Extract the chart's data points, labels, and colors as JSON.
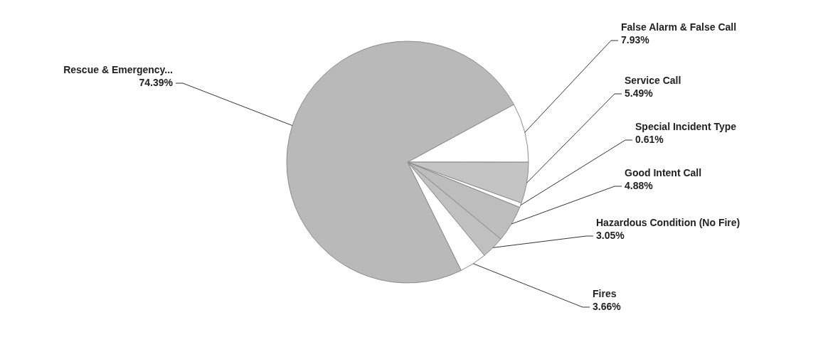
{
  "chart_data": {
    "type": "pie",
    "categories": [
      "False Alarm & False Call",
      "Service Call",
      "Special Incident Type",
      "Good Intent Call",
      "Hazardous Condition (No Fire)",
      "Fires",
      "Rescue & Emergency..."
    ],
    "values": [
      7.93,
      5.49,
      0.61,
      4.88,
      3.05,
      3.66,
      74.39
    ],
    "colors": [
      "#ffffff",
      "#c4c4c4",
      "#ffffff",
      "#bdbdbd",
      "#c0c0c0",
      "#ffffff",
      "#b9b9b9"
    ],
    "value_labels": [
      "7.93%",
      "5.49%",
      "0.61%",
      "4.88%",
      "3.05%",
      "3.66%",
      "74.39%"
    ]
  }
}
